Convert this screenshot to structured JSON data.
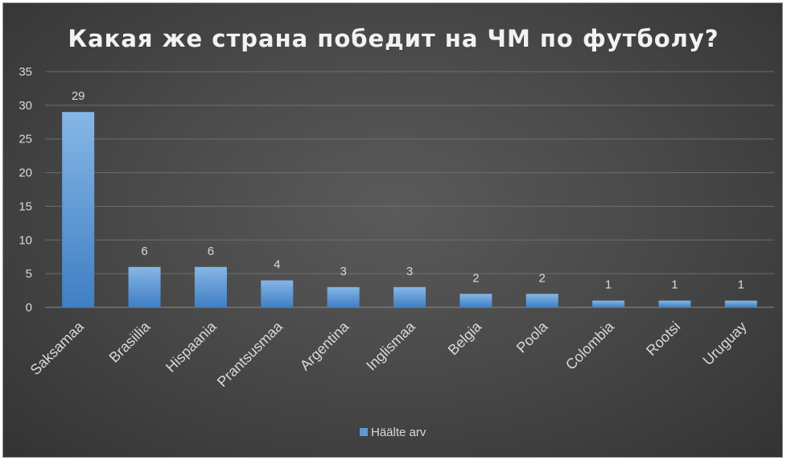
{
  "chart_data": {
    "type": "bar",
    "title": "Какая же страна победит на ЧМ по футболу?",
    "categories": [
      "Saksamaa",
      "Brasiilia",
      "Hispaania",
      "Prantsusmaa",
      "Argentina",
      "Inglismaa",
      "Belgia",
      "Poola",
      "Colombia",
      "Rootsi",
      "Uruguay"
    ],
    "series": [
      {
        "name": "Häälte arv",
        "values": [
          29,
          6,
          6,
          4,
          3,
          3,
          2,
          2,
          1,
          1,
          1
        ],
        "color": "#5b9bd5"
      }
    ],
    "yticks": [
      "0",
      "5",
      "10",
      "15",
      "20",
      "25",
      "30",
      "35"
    ],
    "ylim": [
      0,
      35
    ],
    "grid": true,
    "legend": "bottom",
    "data_labels": true
  }
}
